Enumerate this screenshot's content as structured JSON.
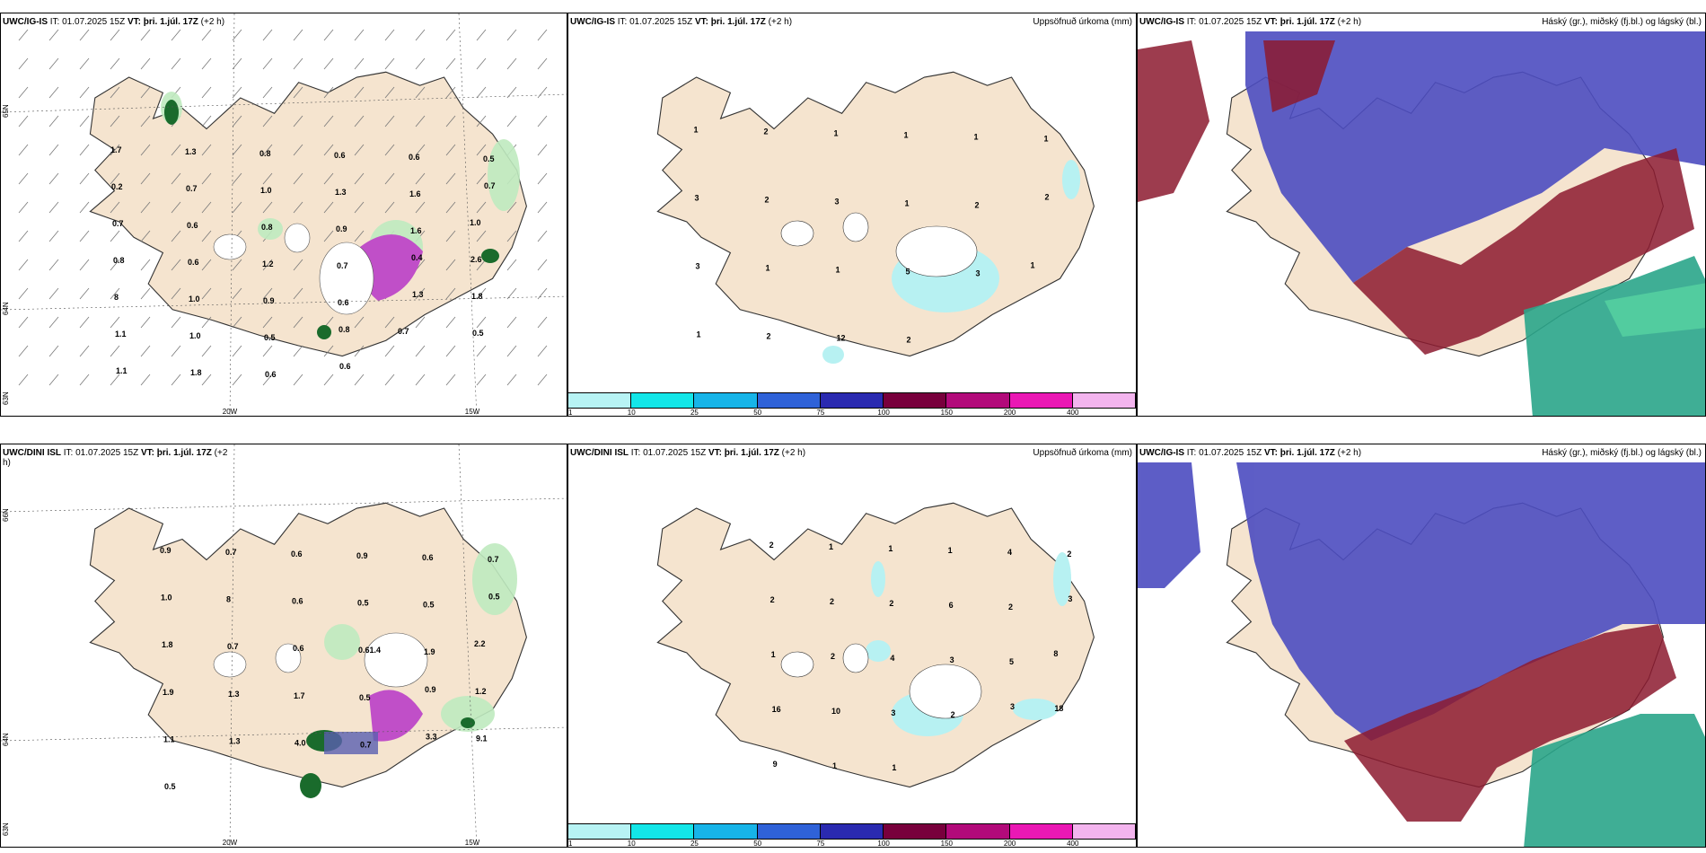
{
  "colors": {
    "land": "#f5e4cf",
    "coast": "#333333",
    "rain_light": "#b7f1f2",
    "green_light": "#bfeabf",
    "green_dark": "#1a6b2c",
    "magenta": "#c04fc8",
    "cloud_high": "#8c1a2f",
    "cloud_mid": "#4c4cc0",
    "cloud_low": "#2aa58a"
  },
  "legend": {
    "ticks": [
      "1",
      "10",
      "25",
      "50",
      "75",
      "100",
      "150",
      "200",
      "400"
    ],
    "colors": [
      "#b7f3f4",
      "#13e6e8",
      "#17b4e8",
      "#2f62d8",
      "#2a2ab0",
      "#78003c",
      "#b20a7a",
      "#ea18b4",
      "#f3b4ee"
    ]
  },
  "panels": [
    {
      "title_model": "UWC/IG-IS",
      "title_it": "IT: 01.07.2025 15Z",
      "title_vt": "VT: þri. 1.júl. 17Z",
      "title_tail": "(+2 h)",
      "right_title": "",
      "lat_labels": [
        "65N",
        "64N",
        "63N"
      ],
      "lon_labels": [
        "20W",
        "15W"
      ],
      "values": [
        "1.7",
        "1.3",
        "0.8",
        "0.6",
        "0.6",
        "0.5",
        "0.2",
        "0.7",
        "1.0",
        "1.3",
        "1.6",
        "0.7",
        "0.7",
        "0.6",
        "0.8",
        "0.9",
        "1.6",
        "1.0",
        "0.8",
        "0.6",
        "1.2",
        "0.7",
        "0.4",
        "2.6",
        "8",
        "1.0",
        "0.9",
        "0.6",
        "1.3",
        "1.8",
        "1.1",
        "1.0",
        "0.5",
        "0.8",
        "0.7",
        "0.5",
        "1.1",
        "1.8",
        "0.6",
        "0.6"
      ]
    },
    {
      "title_model": "UWC/IG-IS",
      "title_it": "IT: 01.07.2025 15Z",
      "title_vt": "VT: þri. 1.júl. 17Z",
      "title_tail": "(+2 h)",
      "right_title": "Uppsöfnuð úrkoma (mm)",
      "values": [
        "1",
        "2",
        "1",
        "1",
        "1",
        "1",
        "3",
        "2",
        "3",
        "1",
        "2",
        "2",
        "3",
        "1",
        "1",
        "5",
        "3",
        "1",
        "1",
        "2",
        "12",
        "2"
      ]
    },
    {
      "title_model": "UWC/IG-IS",
      "title_it": "IT: 01.07.2025 15Z",
      "title_vt": "VT: þri. 1.júl. 17Z",
      "title_tail": "(+2 h)",
      "right_title": "Háský (gr.), miðský (fj.bl.) og lágský (bl.)"
    },
    {
      "title_model": "UWC/DINI ISL",
      "title_it": "IT: 01.07.2025 15Z",
      "title_vt": "VT: þri. 1.júl. 17Z",
      "title_tail": "(+2 h)",
      "right_title": "",
      "lat_labels": [
        "66N",
        "64N",
        "63N"
      ],
      "lon_labels": [
        "20W",
        "15W"
      ],
      "values": [
        "0.9",
        "0.7",
        "0.6",
        "0.9",
        "0.6",
        "0.7",
        "1.0",
        "8",
        "0.6",
        "0.5",
        "0.5",
        "0.5",
        "1.8",
        "0.7",
        "0.6",
        "0.61.4",
        "1.9",
        "2.2",
        "1.9",
        "1.3",
        "1.7",
        "0.5",
        "0.9",
        "1.2",
        "1.1",
        "1.3",
        "4.0",
        "0.7",
        "3.3",
        "9.1",
        "0.5"
      ]
    },
    {
      "title_model": "UWC/DINI ISL",
      "title_it": "IT: 01.07.2025 15Z",
      "title_vt": "VT: þri. 1.júl. 17Z",
      "title_tail": "(+2 h)",
      "right_title": "Uppsöfnuð úrkoma (mm)",
      "values": [
        "2",
        "1",
        "1",
        "1",
        "4",
        "2",
        "2",
        "2",
        "2",
        "6",
        "2",
        "3",
        "1",
        "2",
        "4",
        "3",
        "5",
        "8",
        "16",
        "10",
        "3",
        "2",
        "3",
        "18",
        "9",
        "1",
        "1"
      ]
    },
    {
      "title_model": "UWC/IG-IS",
      "title_it": "IT: 01.07.2025 15Z",
      "title_vt": "VT: þri. 1.júl. 17Z",
      "title_tail": "(+2 h)",
      "right_title": "Háský (gr.), miðský (fj.bl.) og lágský (bl.)"
    }
  ]
}
